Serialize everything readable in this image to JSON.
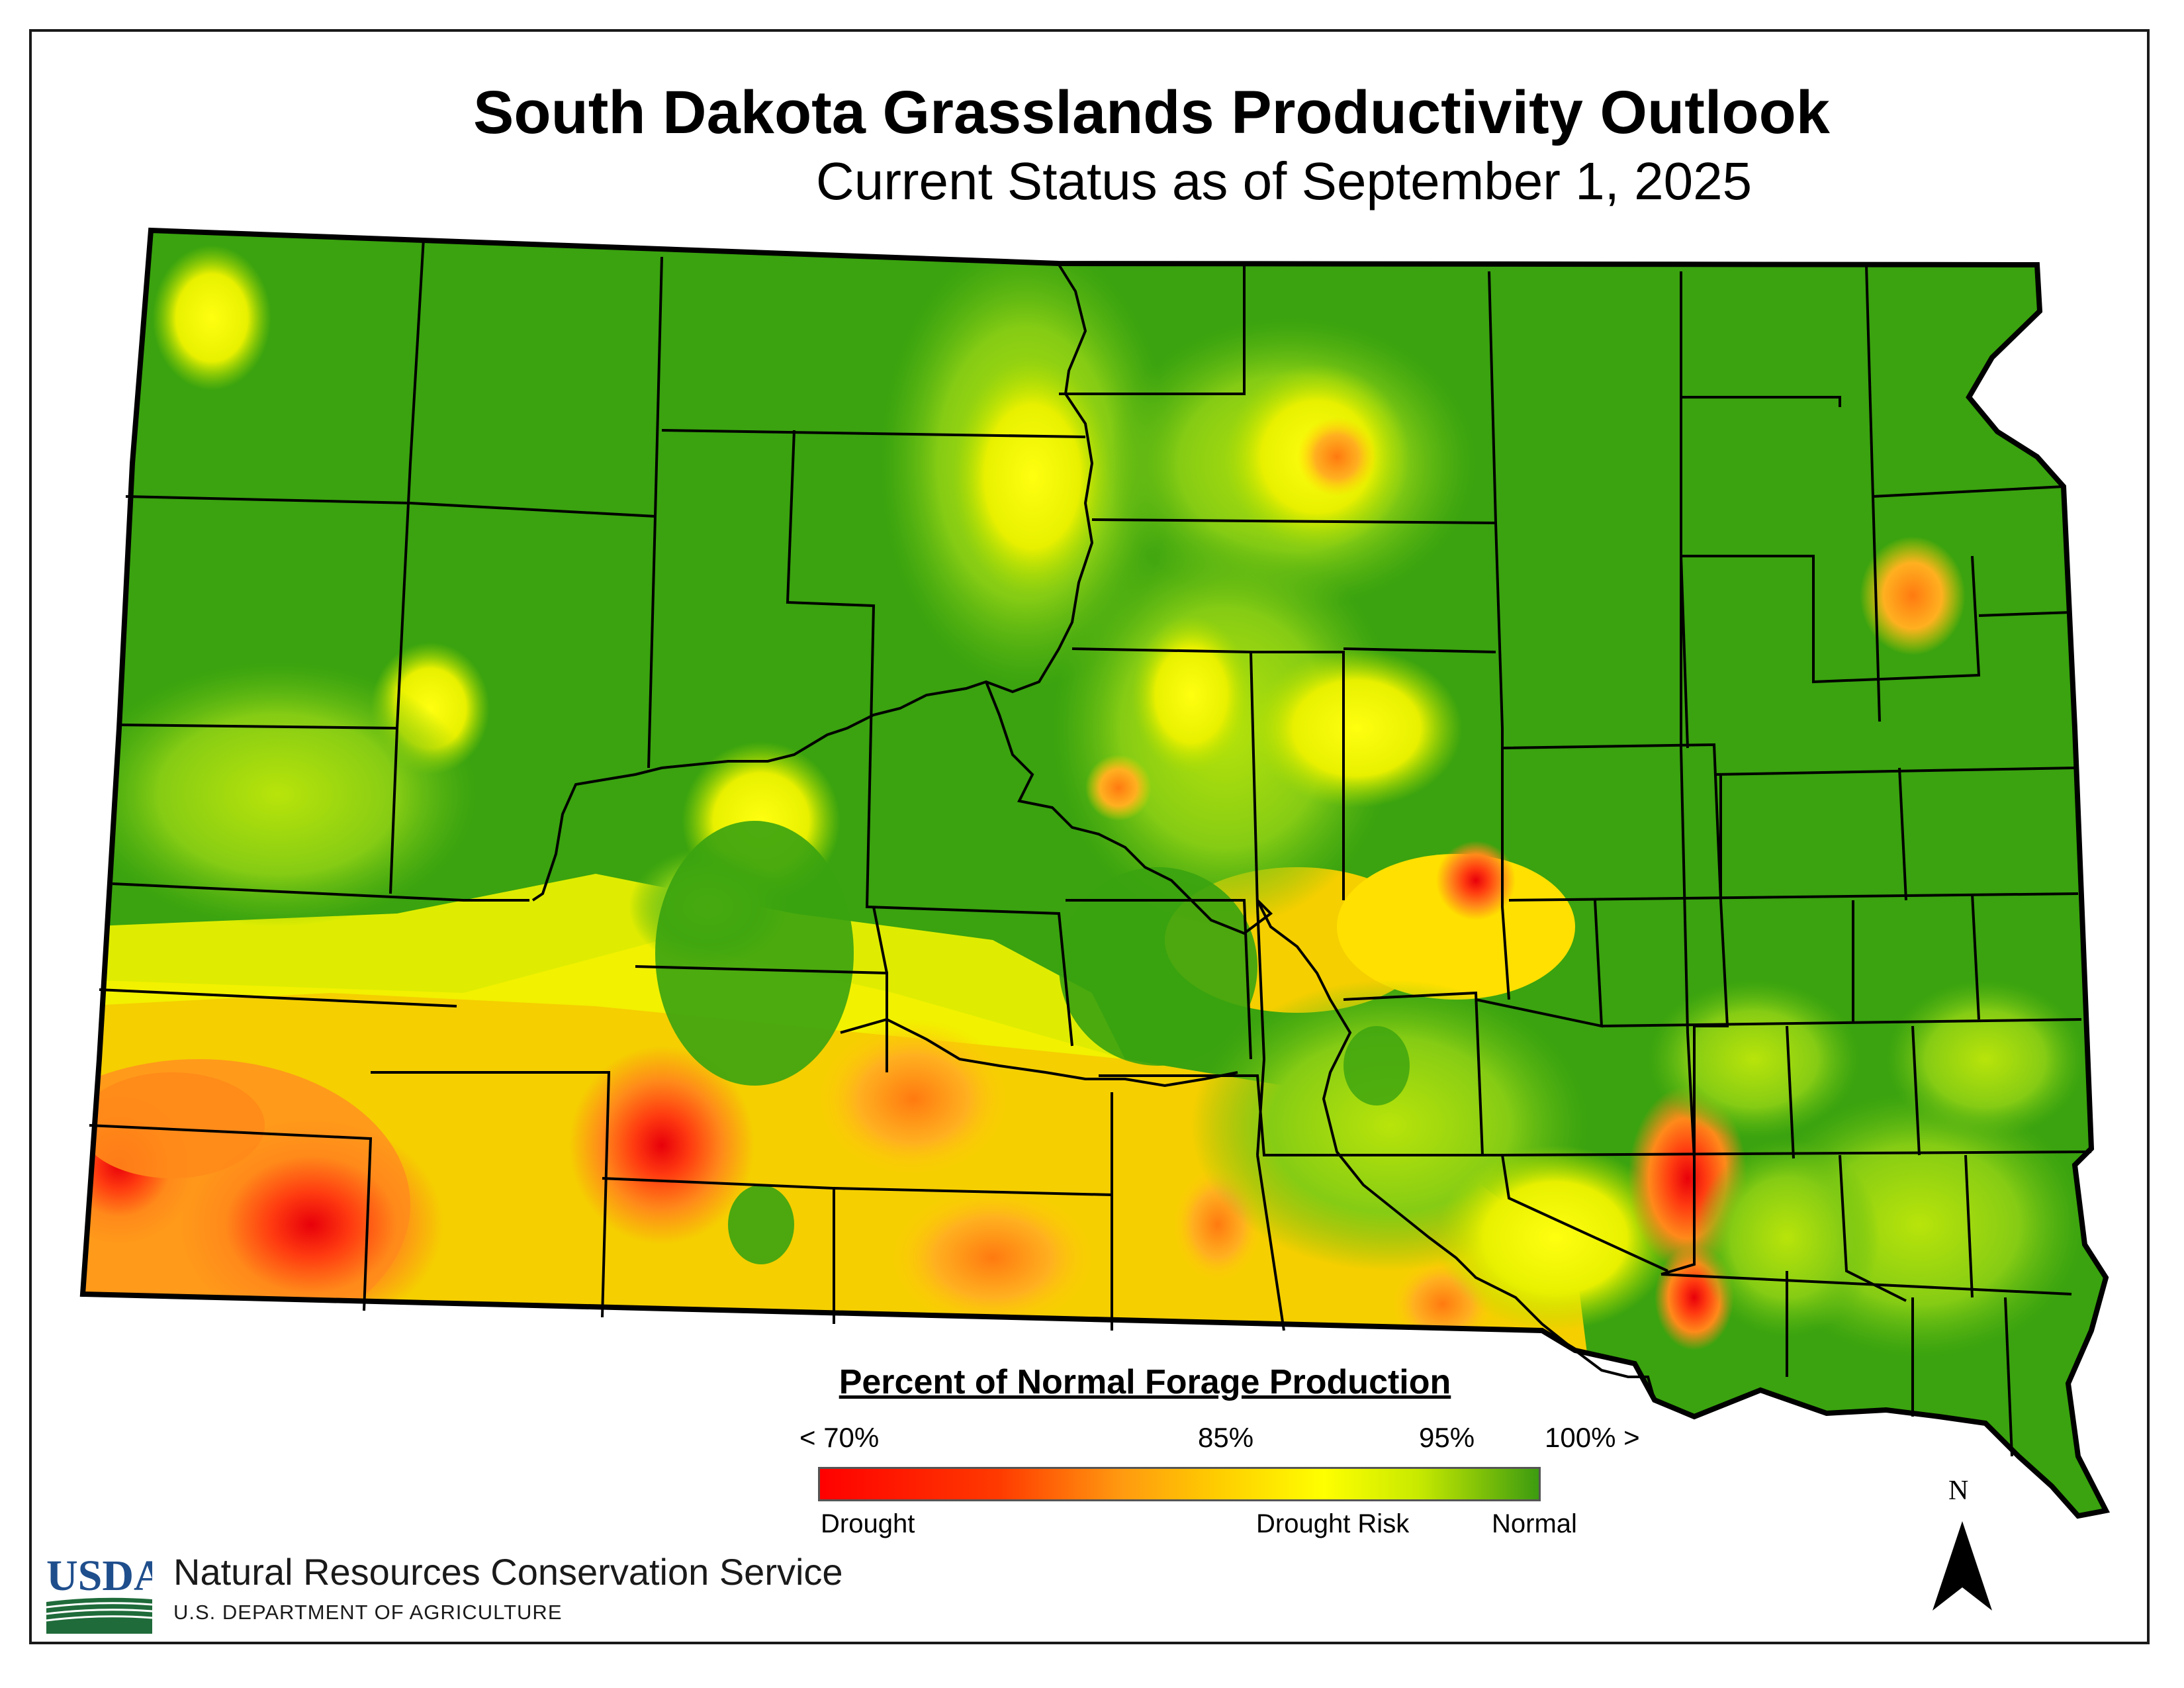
{
  "title": "South Dakota Grasslands Productivity Outlook",
  "subtitle": "Current Status as of September 1, 2025",
  "legend": {
    "title": "Percent of Normal Forage Production",
    "ticks": [
      "< 70%",
      "85%",
      "95%",
      "100% >"
    ],
    "end_labels": [
      "Drought",
      "Drought Risk",
      "Normal"
    ],
    "colors": [
      "#ff0000",
      "#ff8a00",
      "#ffd200",
      "#ffff00",
      "#8fd400",
      "#3a9a10"
    ]
  },
  "agency": {
    "logo_text": "USDA",
    "name": "Natural Resources Conservation Service",
    "department": "U.S. DEPARTMENT OF AGRICULTURE"
  },
  "north_arrow": {
    "label": "N"
  },
  "map_colors": {
    "normal": "#3aa30f",
    "light_green": "#8fd21a",
    "yellow": "#ffff00",
    "gold": "#ffd200",
    "orange": "#ff9a1a",
    "red": "#ff2a10",
    "border": "#000000"
  }
}
